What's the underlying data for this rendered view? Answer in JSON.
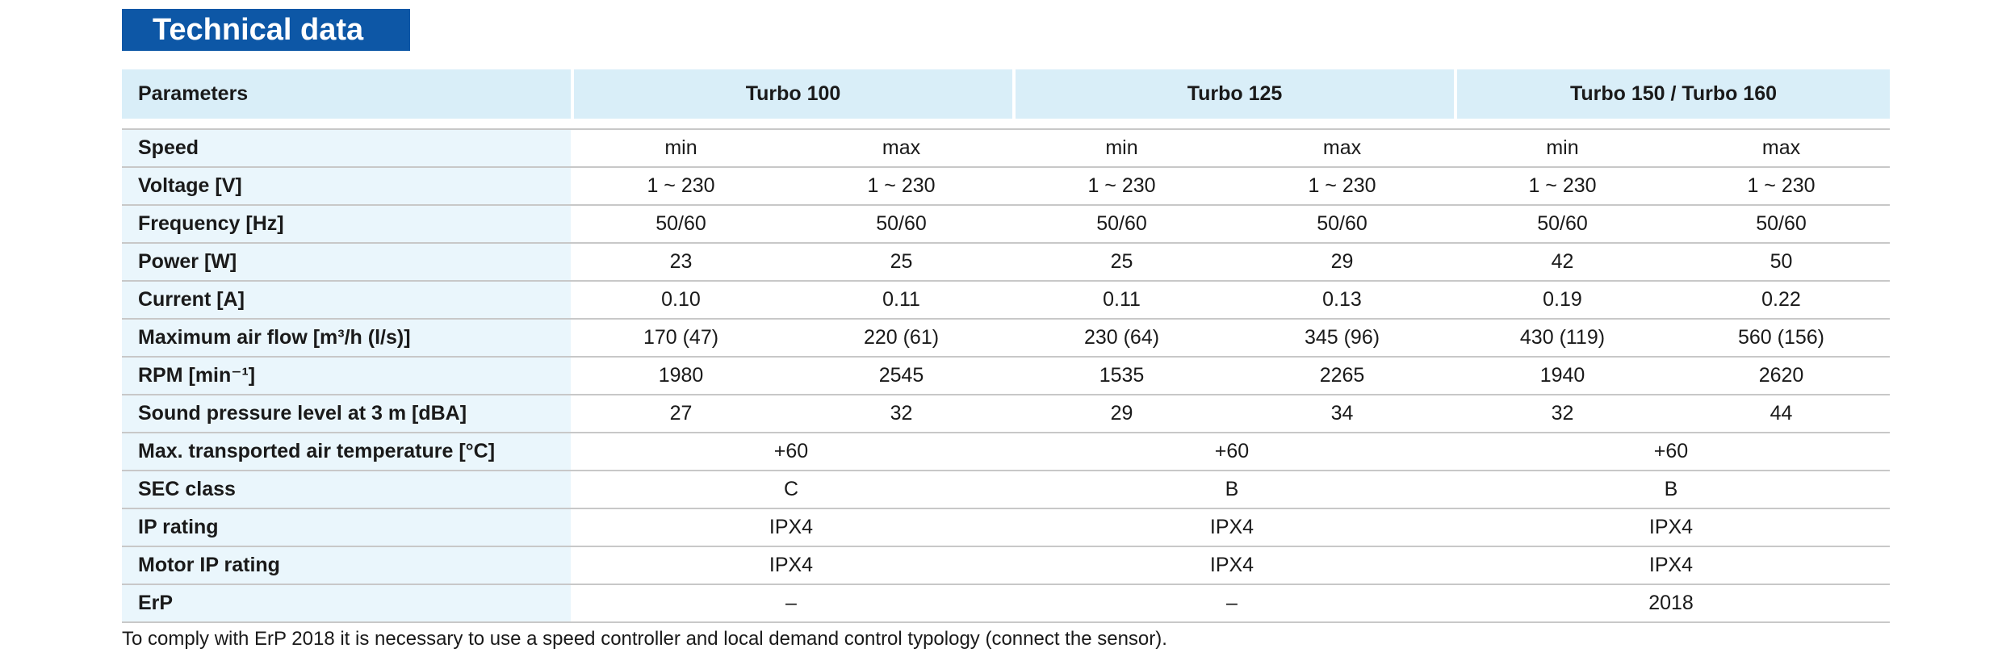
{
  "title": "Technical data",
  "header": {
    "param_label": "Parameters",
    "models": [
      "Turbo 100",
      "Turbo 125",
      "Turbo 150 / Turbo 160"
    ]
  },
  "rows": [
    {
      "param": "Speed",
      "values": [
        "min",
        "max",
        "min",
        "max",
        "min",
        "max"
      ]
    },
    {
      "param": "Voltage [V]",
      "values": [
        "1 ~ 230",
        "1 ~ 230",
        "1 ~ 230",
        "1 ~ 230",
        "1 ~ 230",
        "1 ~ 230"
      ]
    },
    {
      "param": "Frequency [Hz]",
      "values": [
        "50/60",
        "50/60",
        "50/60",
        "50/60",
        "50/60",
        "50/60"
      ]
    },
    {
      "param": "Power [W]",
      "values": [
        "23",
        "25",
        "25",
        "29",
        "42",
        "50"
      ]
    },
    {
      "param": "Current [A]",
      "values": [
        "0.10",
        "0.11",
        "0.11",
        "0.13",
        "0.19",
        "0.22"
      ]
    },
    {
      "param": "Maximum air flow [m³/h (l/s)]",
      "values": [
        "170 (47)",
        "220 (61)",
        "230 (64)",
        "345 (96)",
        "430 (119)",
        "560 (156)"
      ]
    },
    {
      "param": "RPM [min⁻¹]",
      "values": [
        "1980",
        "2545",
        "1535",
        "2265",
        "1940",
        "2620"
      ]
    },
    {
      "param": "Sound pressure level at 3 m [dBA]",
      "values": [
        "27",
        "32",
        "29",
        "34",
        "32",
        "44"
      ]
    },
    {
      "param": "Max. transported air temperature [°C]",
      "values": [
        "+60",
        "+60",
        "+60"
      ]
    },
    {
      "param": "SEC class",
      "values": [
        "C",
        "B",
        "B"
      ]
    },
    {
      "param": "IP rating",
      "values": [
        "IPX4",
        "IPX4",
        "IPX4"
      ]
    },
    {
      "param": "Motor IP rating",
      "values": [
        "IPX4",
        "IPX4",
        "IPX4"
      ]
    },
    {
      "param": "ErP",
      "values": [
        "–",
        "–",
        "2018"
      ]
    }
  ],
  "footnote": "To comply with ErP 2018 it is necessary to use a speed controller and local demand control typology (connect the sensor).",
  "colors": {
    "title_bg": "#0d57a6",
    "header_bg": "#d9eef8",
    "param_bg": "#eaf6fc",
    "rule": "#c8c8c8"
  }
}
